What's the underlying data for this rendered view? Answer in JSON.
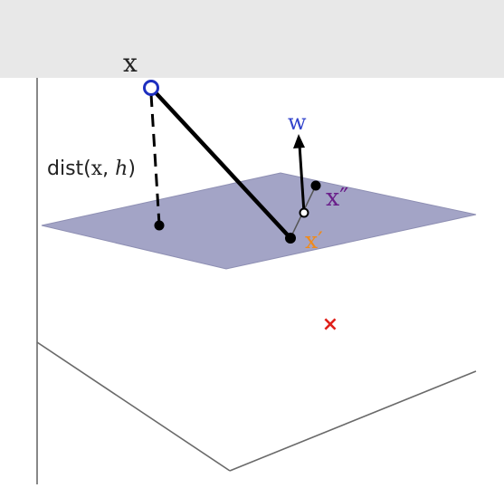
{
  "labels": {
    "x": "x",
    "w": "w",
    "x_prime": "x′",
    "x_double_prime": "x″",
    "dist_prefix": "dist(",
    "dist_x": "x",
    "dist_comma": ", ",
    "dist_h": "h",
    "dist_suffix": ")"
  },
  "markers": {
    "red_cross": "×"
  },
  "colors": {
    "background": "#ffffff",
    "top_band": "#e8e8e8",
    "plane_fill": "#a3a4c6",
    "plane_stroke": "#8e8fb3",
    "box_lines": "#6a6a6a",
    "segment": "#000000",
    "x_circle": "#1d2fbf",
    "w_label": "#3344cc",
    "x_double_prime_label": "#6a1f8a",
    "x_prime_label": "#f08a1a",
    "red_cross": "#e0201a",
    "text": "#222222"
  }
}
